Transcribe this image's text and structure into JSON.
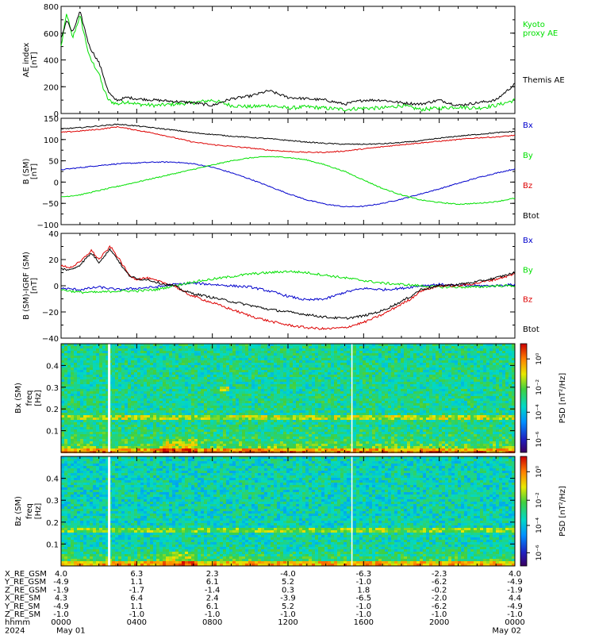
{
  "chart_data": [
    {
      "type": "line",
      "ylabel": "AE index",
      "yunit": "[nT]",
      "ylim": [
        0,
        800
      ],
      "yticks": [
        0,
        200,
        400,
        600,
        800
      ],
      "xlim_hours": [
        0,
        24
      ],
      "grid": false,
      "legend_placement": "right",
      "series": [
        {
          "name": "Kyoto\nproxy AE",
          "color": "#00e000",
          "x": [
            0,
            0.3,
            0.6,
            1.0,
            1.5,
            2.0,
            2.2,
            2.5,
            2.8,
            3.0,
            3.5,
            4,
            5,
            6,
            7,
            8,
            9,
            10,
            11,
            12,
            13,
            14,
            15,
            16,
            17,
            18,
            19,
            20,
            21,
            22,
            23,
            23.5,
            24
          ],
          "y": [
            500,
            750,
            560,
            730,
            420,
            300,
            200,
            100,
            80,
            70,
            90,
            70,
            60,
            70,
            80,
            100,
            60,
            50,
            60,
            40,
            50,
            40,
            30,
            40,
            40,
            60,
            30,
            40,
            50,
            40,
            60,
            80,
            100
          ]
        },
        {
          "name": "Themis AE",
          "color": "#000000",
          "x": [
            0,
            0.3,
            0.6,
            1.0,
            1.5,
            2.0,
            2.2,
            2.5,
            2.8,
            3.0,
            3.5,
            4,
            5,
            6,
            7,
            8,
            9,
            10,
            11,
            12,
            13,
            14,
            15,
            16,
            17,
            18,
            19,
            20,
            21,
            22,
            23,
            23.5,
            24
          ],
          "y": [
            560,
            700,
            600,
            760,
            500,
            380,
            300,
            160,
            110,
            100,
            120,
            110,
            100,
            90,
            80,
            60,
            110,
            130,
            170,
            120,
            110,
            100,
            70,
            100,
            100,
            80,
            70,
            100,
            60,
            80,
            100,
            160,
            220
          ]
        }
      ]
    },
    {
      "type": "line",
      "ylabel": "B (SM)",
      "yunit": "[nT]",
      "ylim": [
        -100,
        150
      ],
      "yticks": [
        -100,
        -50,
        0,
        50,
        100,
        150
      ],
      "xlim_hours": [
        0,
        24
      ],
      "grid": false,
      "legend_placement": "right",
      "series": [
        {
          "name": "Bx",
          "color": "#0000cc",
          "x": [
            0,
            1,
            2,
            3,
            4,
            5,
            6,
            7,
            8,
            9,
            10,
            11,
            12,
            13,
            14,
            15,
            16,
            17,
            18,
            19,
            20,
            21,
            22,
            23,
            24
          ],
          "y": [
            29,
            34,
            39,
            43,
            45,
            47,
            47,
            43,
            35,
            22,
            7,
            -10,
            -27,
            -42,
            -52,
            -58,
            -57,
            -50,
            -40,
            -28,
            -16,
            -3,
            10,
            21,
            31
          ]
        },
        {
          "name": "By",
          "color": "#00e000",
          "x": [
            0,
            1,
            2,
            3,
            4,
            5,
            6,
            7,
            8,
            9,
            10,
            11,
            12,
            13,
            14,
            15,
            16,
            17,
            18,
            19,
            20,
            21,
            22,
            23,
            24
          ],
          "y": [
            -35,
            -30,
            -20,
            -10,
            0,
            10,
            20,
            30,
            40,
            50,
            57,
            60,
            58,
            52,
            40,
            25,
            5,
            -15,
            -30,
            -42,
            -48,
            -52,
            -50,
            -46,
            -38
          ]
        },
        {
          "name": "Bz",
          "color": "#dd0000",
          "x": [
            0,
            1,
            2,
            3,
            4,
            5,
            6,
            7,
            8,
            9,
            10,
            11,
            12,
            13,
            14,
            15,
            16,
            17,
            18,
            19,
            20,
            21,
            22,
            23,
            24
          ],
          "y": [
            117,
            120,
            124,
            130,
            122,
            114,
            104,
            94,
            88,
            84,
            80,
            75,
            72,
            70,
            70,
            73,
            78,
            83,
            88,
            92,
            96,
            100,
            104,
            106,
            110
          ]
        },
        {
          "name": "Btot",
          "color": "#000000",
          "x": [
            0,
            1,
            2,
            3,
            4,
            5,
            6,
            7,
            8,
            9,
            10,
            11,
            12,
            13,
            14,
            15,
            16,
            17,
            18,
            19,
            20,
            21,
            22,
            23,
            24
          ],
          "y": [
            125,
            128,
            132,
            136,
            132,
            127,
            122,
            116,
            112,
            108,
            105,
            102,
            98,
            94,
            91,
            89,
            89,
            90,
            93,
            97,
            103,
            108,
            112,
            116,
            119
          ]
        }
      ]
    },
    {
      "type": "line",
      "ylabel": "B (SM)-IGRF (SM)",
      "yunit": "[nT]",
      "ylim": [
        -40,
        40
      ],
      "yticks": [
        -40,
        -20,
        0,
        20,
        40
      ],
      "xlim_hours": [
        0,
        24
      ],
      "grid": false,
      "legend_placement": "right",
      "series": [
        {
          "name": "Bx",
          "color": "#0000cc",
          "x": [
            0,
            1,
            2,
            3,
            4,
            5,
            6,
            7,
            8,
            9,
            10,
            11,
            12,
            13,
            14,
            15,
            16,
            17,
            18,
            19,
            20,
            21,
            22,
            23,
            24
          ],
          "y": [
            -2,
            -3,
            -1,
            -3,
            -2,
            -1,
            1,
            2,
            1,
            0,
            -1,
            -4,
            -8,
            -11,
            -10,
            -5,
            -2,
            -3,
            -2,
            0,
            1,
            0,
            0,
            0,
            1
          ]
        },
        {
          "name": "By",
          "color": "#00e000",
          "x": [
            0,
            1,
            2,
            3,
            4,
            5,
            6,
            7,
            8,
            9,
            10,
            11,
            12,
            13,
            14,
            15,
            16,
            17,
            18,
            19,
            20,
            21,
            22,
            23,
            24
          ],
          "y": [
            -3,
            -5,
            -5,
            -4,
            -4,
            -3,
            0,
            3,
            5,
            7,
            9,
            10,
            11,
            10,
            8,
            6,
            4,
            2,
            1,
            0,
            -1,
            -1,
            -1,
            0,
            0
          ]
        },
        {
          "name": "Bz",
          "color": "#dd0000",
          "x": [
            0,
            0.5,
            1,
            1.6,
            2,
            2.6,
            3,
            3.3,
            3.6,
            4,
            4.5,
            5,
            5.5,
            6,
            6.5,
            7,
            8,
            9,
            10,
            11,
            12,
            13,
            14,
            15,
            16,
            17,
            18,
            18.5,
            19,
            20,
            21,
            22,
            23,
            24
          ],
          "y": [
            15,
            14,
            18,
            27,
            20,
            30,
            22,
            15,
            8,
            5,
            6,
            4,
            2,
            0,
            -5,
            -8,
            -13,
            -18,
            -23,
            -27,
            -30,
            -32,
            -33,
            -32,
            -28,
            -22,
            -14,
            -10,
            -4,
            0,
            0,
            2,
            5,
            9
          ]
        },
        {
          "name": "Btot",
          "color": "#000000",
          "x": [
            0,
            0.5,
            1,
            1.6,
            2,
            2.6,
            3,
            3.3,
            3.6,
            4,
            4.5,
            5,
            5.5,
            6,
            6.5,
            7,
            8,
            9,
            10,
            11,
            12,
            13,
            14,
            15,
            16,
            17,
            18,
            18.5,
            19,
            20,
            21,
            22,
            23,
            24
          ],
          "y": [
            13,
            12,
            16,
            25,
            18,
            28,
            20,
            13,
            8,
            5,
            5,
            3,
            1,
            0,
            -4,
            -6,
            -9,
            -12,
            -15,
            -18,
            -20,
            -22,
            -24,
            -25,
            -23,
            -19,
            -12,
            -8,
            -3,
            0,
            1,
            3,
            6,
            10
          ]
        }
      ]
    },
    {
      "type": "heatmap",
      "ylabel": "Bx (SM)",
      "ylabel2": "freq",
      "yunit": "[Hz]",
      "ylim": [
        0,
        0.5
      ],
      "yticks": [
        "0.1",
        "0.2",
        "0.3",
        "0.4"
      ],
      "xlim_hours": [
        0,
        24
      ],
      "colorbar_label": "PSD [nT²/Hz]",
      "colorbar_ticks": [
        "10⁰",
        "10⁻²",
        "10⁻⁴",
        "10⁻⁶"
      ]
    },
    {
      "type": "heatmap",
      "ylabel": "Bz (SM)",
      "ylabel2": "freq",
      "yunit": "[Hz]",
      "ylim": [
        0,
        0.5
      ],
      "yticks": [
        "0.1",
        "0.2",
        "0.3",
        "0.4"
      ],
      "xlim_hours": [
        0,
        24
      ],
      "colorbar_label": "PSD [nT²/Hz]",
      "colorbar_ticks": [
        "10⁰",
        "10⁻²",
        "10⁻⁴",
        "10⁻⁶"
      ]
    }
  ],
  "footer": {
    "rows": [
      {
        "label": "X_RE_GSM",
        "values": [
          "4.0",
          "6.3",
          "2.3",
          "-4.0",
          "-6.3",
          "-2.3",
          "4.0"
        ]
      },
      {
        "label": "Y_RE_GSM",
        "values": [
          "-4.9",
          "1.1",
          "6.1",
          "5.2",
          "-1.0",
          "-6.2",
          "-4.9"
        ]
      },
      {
        "label": "Z_RE_GSM",
        "values": [
          "-1.9",
          "-1.7",
          "-1.4",
          "0.3",
          "1.8",
          "-0.2",
          "-1.9"
        ]
      },
      {
        "label": "X_RE_SM",
        "values": [
          "4.3",
          "6.4",
          "2.4",
          "-3.9",
          "-6.5",
          "-2.0",
          "4.4"
        ]
      },
      {
        "label": "Y_RE_SM",
        "values": [
          "-4.9",
          "1.1",
          "6.1",
          "5.2",
          "-1.0",
          "-6.2",
          "-4.9"
        ]
      },
      {
        "label": "Z_RE_SM",
        "values": [
          "-1.0",
          "-1.0",
          "-1.0",
          "-1.0",
          "-1.0",
          "-1.0",
          "-1.0"
        ]
      },
      {
        "label": "hhmm",
        "values": [
          "0000",
          "0400",
          "0800",
          "1200",
          "1600",
          "2000",
          "0000"
        ]
      },
      {
        "label": "2024",
        "values": [
          "May 01",
          "",
          "",
          "",
          "",
          "",
          "May 02"
        ]
      }
    ]
  }
}
